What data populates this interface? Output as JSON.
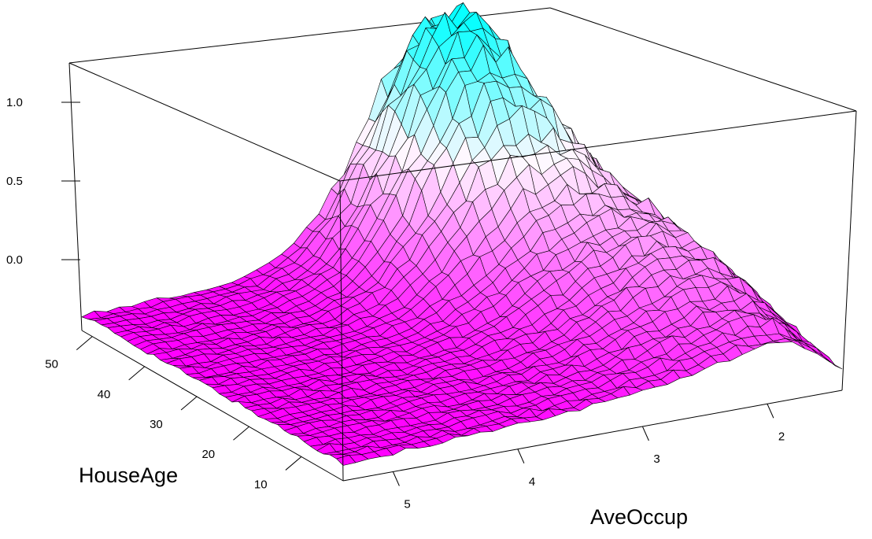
{
  "chart_data": {
    "type": "surface3d",
    "title": "",
    "xlabel": "AveOccup",
    "ylabel": "HouseAge",
    "zlabel": "",
    "x_ticks": [
      "5",
      "4",
      "3",
      "2"
    ],
    "x_tick_values": [
      5,
      4,
      3,
      2
    ],
    "y_ticks": [
      "50",
      "40",
      "30",
      "20",
      "10"
    ],
    "y_tick_values": [
      50,
      40,
      30,
      20,
      10
    ],
    "z_ticks": [
      "1.0",
      "0.5",
      "0.0"
    ],
    "z_tick_values": [
      1.0,
      0.5,
      0.0
    ],
    "xlim": [
      1.4,
      5.4
    ],
    "ylim": [
      2,
      52
    ],
    "zlim": [
      -0.45,
      1.25
    ],
    "grid_size": [
      40,
      40
    ],
    "surface_description_values": {
      "baseline_far_corner_z": -0.35,
      "peak_z": 1.22,
      "peak_location": {
        "AveOccup": 2.6,
        "HouseAge": 48
      }
    },
    "colormap": {
      "low": "#ff00ff",
      "mid": "#fff8ff",
      "high": "#00ffff"
    }
  }
}
